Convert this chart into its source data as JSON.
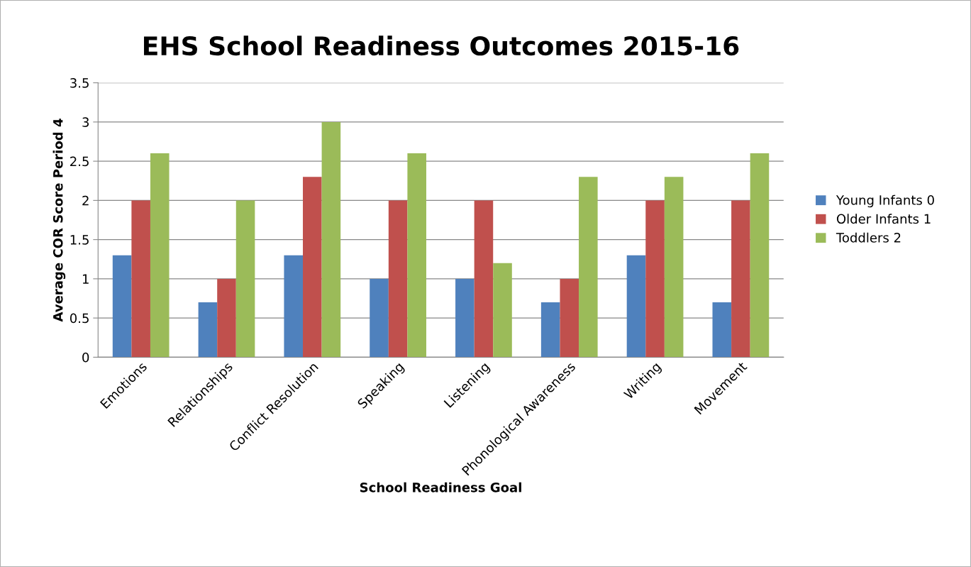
{
  "chart_data": {
    "type": "bar",
    "title": "EHS School Readiness Outcomes 2015-16",
    "xlabel": "School Readiness Goal",
    "ylabel": "Average COR Score Period 4",
    "categories": [
      "Emotions",
      "Relationships",
      "Conflict Resolution",
      "Speaking",
      "Listening",
      "Phonological Awareness",
      "Writing",
      "Movement"
    ],
    "series": [
      {
        "name": "Young Infants 0",
        "color": "#4f81bd",
        "values": [
          1.3,
          0.7,
          1.3,
          1,
          1,
          0.7,
          1.3,
          0.7
        ]
      },
      {
        "name": "Older Infants 1",
        "color": "#c0504d",
        "values": [
          2,
          1,
          2.3,
          2,
          2,
          1,
          2,
          2
        ]
      },
      {
        "name": "Toddlers 2",
        "color": "#9bbb59",
        "values": [
          2.6,
          2,
          3,
          2.6,
          1.2,
          2.3,
          2.3,
          2.6
        ]
      }
    ],
    "ylim": [
      0,
      3.5
    ],
    "yticks": [
      0,
      0.5,
      1,
      1.5,
      2,
      2.5,
      3,
      3.5
    ],
    "grid": "y",
    "legend": "right"
  }
}
